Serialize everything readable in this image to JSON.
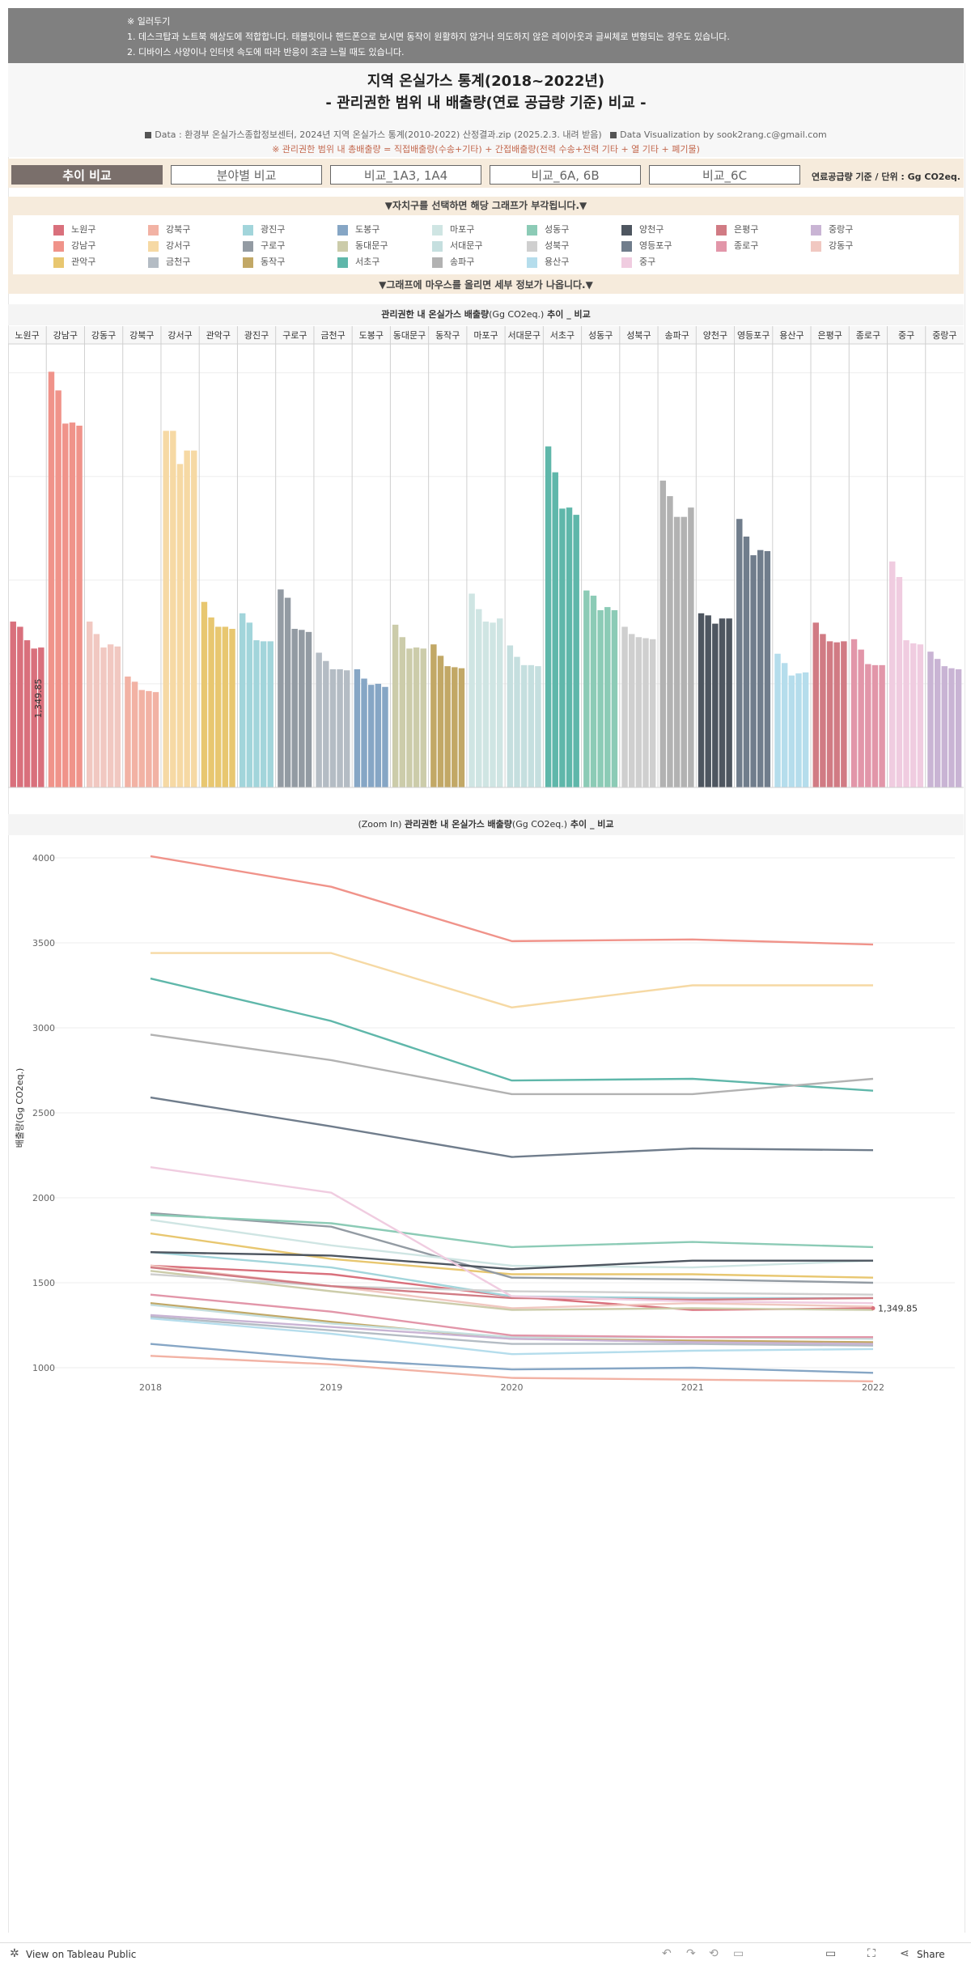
{
  "notice": {
    "lines": [
      "※ 일러두기",
      "1. 데스크탑과 노트북 해상도에 적합합니다. 태블릿이나 핸드폰으로 보시면 동작이 원활하지 않거나 의도하지 않은 레이아웃과 글씨체로 변형되는 경우도 있습니다.",
      "2. 디바이스 사양이나 인터넷 속도에 따라 반응이 조금 느릴 때도 있습니다."
    ]
  },
  "header": {
    "title1": "지역 온실가스 통계(2018~2022년)",
    "title2": "- 관리권한 범위 내 배출량(연료 공급량 기준) 비교 -",
    "source": "Data : 환경부 온실가스종합정보센터, 2024년 지역 온실가스 통계(2010-2022) 산정결과.zip (2025.2.3. 내려 받음)",
    "credit": "Data Visualization by sook2rang.c@gmail.com",
    "formula": "※ 관리권한 범위 내 총배출량 = 직접배출량(수송+기타) + 간접배출량(전력 수송+전력 기타 + 열 기타 + 폐기물)"
  },
  "tabs": [
    "추이 비교",
    "분야별 비교",
    "비교_1A3, 1A4",
    "비교_6A, 6B",
    "비교_6C"
  ],
  "unit_label": "연료공급량 기준 / 단위 : Gg CO2eq.",
  "legend": {
    "header": "▼자치구를 선택하면 해당 그래프가 부각됩니다.▼",
    "hover_note": "▼그래프에 마우스를 올리면 세부 정보가 나옵니다.▼",
    "items": [
      {
        "name": "노원구",
        "color": "#d9707c"
      },
      {
        "name": "강북구",
        "color": "#f2b2a4"
      },
      {
        "name": "광진구",
        "color": "#a2d5db"
      },
      {
        "name": "도봉구",
        "color": "#86a6c5"
      },
      {
        "name": "마포구",
        "color": "#cfe5e3"
      },
      {
        "name": "성동구",
        "color": "#8ccbb6"
      },
      {
        "name": "양천구",
        "color": "#4e5660"
      },
      {
        "name": "은평구",
        "color": "#d17b84"
      },
      {
        "name": "중랑구",
        "color": "#c9b4d4"
      },
      {
        "name": "강남구",
        "color": "#f0938a"
      },
      {
        "name": "강서구",
        "color": "#f6d9a4"
      },
      {
        "name": "구로구",
        "color": "#939ba3"
      },
      {
        "name": "동대문구",
        "color": "#ccccaa"
      },
      {
        "name": "서대문구",
        "color": "#c5dfdf"
      },
      {
        "name": "성북구",
        "color": "#cfcfcf"
      },
      {
        "name": "영등포구",
        "color": "#707d8c"
      },
      {
        "name": "종로구",
        "color": "#e296a9"
      },
      {
        "name": "강동구",
        "color": "#f1c8c1"
      },
      {
        "name": "관악구",
        "color": "#e8c770"
      },
      {
        "name": "금천구",
        "color": "#b4bcc4"
      },
      {
        "name": "동작구",
        "color": "#c2a866"
      },
      {
        "name": "서초구",
        "color": "#5fb7aa"
      },
      {
        "name": "송파구",
        "color": "#b2b2b2"
      },
      {
        "name": "용산구",
        "color": "#b5ddec"
      },
      {
        "name": "중구",
        "color": "#f0cce0"
      }
    ]
  },
  "chart_data": [
    {
      "type": "bar",
      "title_prefix": "관리권한 내 온실가스 배출량",
      "title_unit": "(Gg CO2eq.)",
      "title_suffix": " 추이 _ 비교",
      "years": [
        2018,
        2019,
        2020,
        2021,
        2022
      ],
      "ylim": [
        0,
        4200
      ],
      "mark_label": "1,349.85",
      "mark_label_district": "노원구",
      "series": [
        {
          "name": "노원구",
          "values": [
            1600,
            1550,
            1420,
            1340,
            1349.85
          ]
        },
        {
          "name": "강남구",
          "values": [
            4010,
            3830,
            3510,
            3520,
            3490
          ]
        },
        {
          "name": "강동구",
          "values": [
            1600,
            1480,
            1350,
            1380,
            1360
          ]
        },
        {
          "name": "강북구",
          "values": [
            1070,
            1020,
            940,
            930,
            920
          ]
        },
        {
          "name": "강서구",
          "values": [
            3440,
            3440,
            3120,
            3250,
            3250
          ]
        },
        {
          "name": "관악구",
          "values": [
            1790,
            1640,
            1550,
            1550,
            1530
          ]
        },
        {
          "name": "광진구",
          "values": [
            1680,
            1590,
            1420,
            1410,
            1410
          ]
        },
        {
          "name": "구로구",
          "values": [
            1910,
            1830,
            1530,
            1520,
            1500
          ]
        },
        {
          "name": "금천구",
          "values": [
            1300,
            1220,
            1140,
            1140,
            1130
          ]
        },
        {
          "name": "도봉구",
          "values": [
            1140,
            1050,
            990,
            1000,
            970
          ]
        },
        {
          "name": "동대문구",
          "values": [
            1570,
            1450,
            1340,
            1350,
            1340
          ]
        },
        {
          "name": "동작구",
          "values": [
            1380,
            1270,
            1170,
            1160,
            1150
          ]
        },
        {
          "name": "마포구",
          "values": [
            1870,
            1720,
            1600,
            1590,
            1630
          ]
        },
        {
          "name": "서대문구",
          "values": [
            1370,
            1260,
            1180,
            1180,
            1170
          ]
        },
        {
          "name": "서초구",
          "values": [
            3290,
            3040,
            2690,
            2700,
            2630
          ]
        },
        {
          "name": "성동구",
          "values": [
            1900,
            1850,
            1710,
            1740,
            1710
          ]
        },
        {
          "name": "성북구",
          "values": [
            1550,
            1480,
            1450,
            1440,
            1430
          ]
        },
        {
          "name": "송파구",
          "values": [
            2960,
            2810,
            2610,
            2610,
            2700
          ]
        },
        {
          "name": "양천구",
          "values": [
            1680,
            1660,
            1580,
            1630,
            1630
          ]
        },
        {
          "name": "영등포구",
          "values": [
            2590,
            2420,
            2240,
            2290,
            2280
          ]
        },
        {
          "name": "용산구",
          "values": [
            1290,
            1200,
            1080,
            1100,
            1110
          ]
        },
        {
          "name": "은평구",
          "values": [
            1590,
            1480,
            1410,
            1400,
            1410
          ]
        },
        {
          "name": "종로구",
          "values": [
            1430,
            1330,
            1190,
            1180,
            1180
          ]
        },
        {
          "name": "중구",
          "values": [
            2180,
            2030,
            1420,
            1390,
            1380
          ]
        },
        {
          "name": "중랑구",
          "values": [
            1310,
            1240,
            1170,
            1150,
            1140
          ]
        }
      ]
    },
    {
      "type": "line",
      "title_prefix": "(Zoom In) ",
      "title_main": "관리권한 내 온실가스 배출량",
      "title_unit": "(Gg CO2eq.)",
      "title_suffix": " 추이 _ 비교",
      "x": [
        2018,
        2019,
        2020,
        2021,
        2022
      ],
      "x_tick_labels": [
        "2018",
        "2019",
        "2020",
        "2021",
        "2022"
      ],
      "y_ticks": [
        1000,
        1500,
        2000,
        2500,
        3000,
        3500,
        4000
      ],
      "y_tick_labels": [
        "1000",
        "1500",
        "2000",
        "2500",
        "3000",
        "3500",
        "4000"
      ],
      "ylabel": "배출량(Gg CO2eq.)",
      "ylim": [
        880,
        4050
      ],
      "annotation": "1,349.85",
      "annotation_district": "노원구",
      "series_ref": "same as bar chart series"
    }
  ],
  "footer": {
    "view_on": "View on Tableau Public",
    "share": "Share"
  }
}
